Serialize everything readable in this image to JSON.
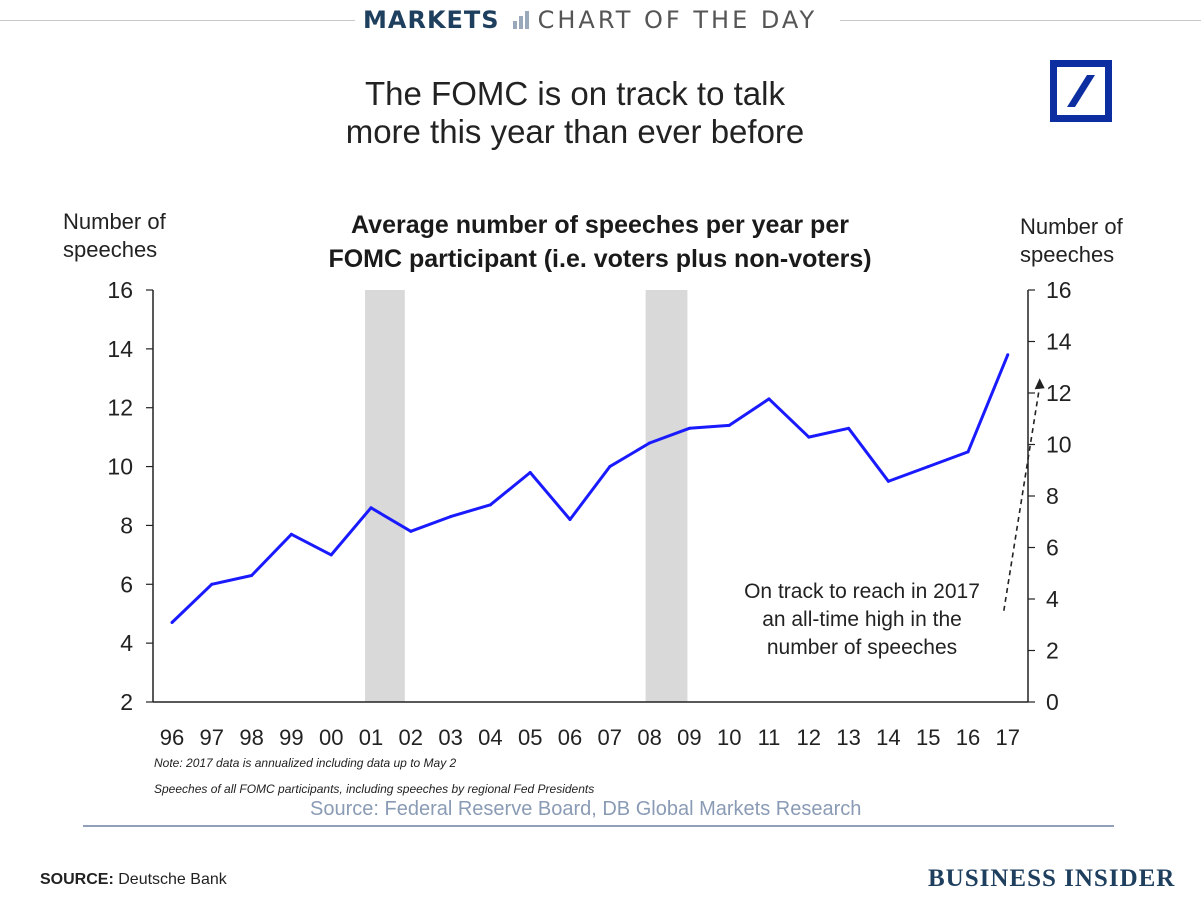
{
  "header": {
    "section": "MARKETS",
    "tagline": "CHART OF THE DAY"
  },
  "colors": {
    "brand": "#1f3f5f",
    "line": "#1a1aff",
    "recession": "#d9d9d9",
    "db_blue": "#0c2ea0"
  },
  "main_title": {
    "line1": "The FOMC is on track to talk",
    "line2": "more this year than ever before"
  },
  "chart_data": {
    "type": "line",
    "title_line1": "Average number of speeches per year per",
    "title_line2": "FOMC participant (i.e. voters plus non-voters)",
    "ylabel_left_line1": "Number of",
    "ylabel_left_line2": "speeches",
    "ylabel_right_line1": "Number of",
    "ylabel_right_line2": "speeches",
    "categories": [
      "96",
      "97",
      "98",
      "99",
      "00",
      "01",
      "02",
      "03",
      "04",
      "05",
      "06",
      "07",
      "08",
      "09",
      "10",
      "11",
      "12",
      "13",
      "14",
      "15",
      "16",
      "17"
    ],
    "series": [
      {
        "values": [
          4.7,
          6.0,
          6.3,
          7.7,
          7.0,
          8.6,
          7.8,
          8.3,
          8.7,
          9.8,
          8.2,
          10.0,
          10.8,
          11.3,
          11.4,
          12.3,
          11.0,
          11.3,
          9.5,
          10.0,
          10.5,
          13.8
        ]
      }
    ],
    "ylim_left": [
      2,
      16
    ],
    "yticks_left": [
      2,
      4,
      6,
      8,
      10,
      12,
      14,
      16
    ],
    "ylim_right": [
      0,
      16
    ],
    "yticks_right": [
      0,
      2,
      4,
      6,
      8,
      10,
      12,
      14,
      16
    ],
    "shaded_periods": [
      {
        "start": 4.85,
        "end": 5.85
      },
      {
        "start": 11.9,
        "end": 12.95
      }
    ],
    "annotation": {
      "line1": "On track to reach in 2017",
      "line2": "an all-time high in the",
      "line3": "number of speeches",
      "arrow_target": {
        "x": 21.8,
        "y": 13.0
      },
      "arrow_from": {
        "x": 20.9,
        "y": 5.1
      }
    },
    "grid": false
  },
  "notes": {
    "note1": "Note: 2017 data is annualized including data up to May 2",
    "note2": "Speeches of all FOMC participants, including speeches by regional Fed Presidents",
    "source_inner": "Source: Federal Reserve Board, DB Global Markets Research"
  },
  "footer": {
    "source_label": "SOURCE:",
    "source_value": "Deutsche Bank",
    "brand": "BUSINESS INSIDER"
  }
}
